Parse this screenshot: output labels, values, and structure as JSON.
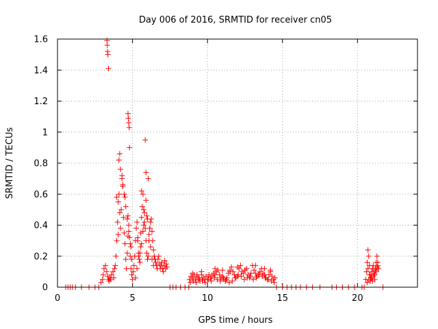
{
  "chart_data": {
    "type": "scatter",
    "title": "Day 006 of 2016, SRMTID for receiver cn05",
    "xlabel": "GPS time / hours",
    "ylabel": "SRMTID / TECUs",
    "xlim": [
      0,
      24
    ],
    "ylim": [
      0,
      1.6
    ],
    "xticks": [
      0,
      5,
      10,
      15,
      20
    ],
    "xtick_labels": [
      "0",
      "5",
      "10",
      "15",
      "20"
    ],
    "yticks": [
      0,
      0.2,
      0.4,
      0.6,
      0.8,
      1.0,
      1.2,
      1.4,
      1.6
    ],
    "ytick_labels": [
      "0",
      "0.2",
      "0.4",
      "0.6",
      "0.8",
      "1",
      "1.2",
      "1.4",
      "1.6"
    ],
    "grid": true,
    "marker": "+",
    "color": "#ff0000",
    "series": [
      {
        "name": "SRMTID",
        "x": [
          0.55,
          0.7,
          0.85,
          1.0,
          1.2,
          1.6,
          2.1,
          2.5,
          2.75,
          2.9,
          3.0,
          3.05,
          3.1,
          3.2,
          3.28,
          3.35,
          3.4,
          3.45,
          3.5,
          3.55,
          3.6,
          3.7,
          3.75,
          3.8,
          3.85,
          3.9,
          3.95,
          4.0,
          4.05,
          4.1,
          4.15,
          4.2,
          4.25,
          4.3,
          4.35,
          4.4,
          4.45,
          4.5,
          4.55,
          4.6,
          4.65,
          4.7,
          4.75,
          4.8,
          4.85,
          4.9,
          4.95,
          5.0,
          4.1,
          4.2,
          4.35,
          4.45,
          4.55,
          4.65,
          4.75,
          4.85,
          4.95,
          4.15,
          4.3,
          4.5,
          4.7,
          4.9,
          3.3,
          3.32,
          3.34,
          3.36,
          3.4,
          4.7,
          4.72,
          4.75,
          4.78,
          4.8,
          3.95,
          4.05,
          5.05,
          5.1,
          5.15,
          5.2,
          5.25,
          5.3,
          5.35,
          5.4,
          5.45,
          5.5,
          5.55,
          5.6,
          5.65,
          5.7,
          5.75,
          5.8,
          5.85,
          5.9,
          5.95,
          6.0,
          6.05,
          6.1,
          6.15,
          6.2,
          6.25,
          6.3,
          6.35,
          6.4,
          6.45,
          6.5,
          5.2,
          5.3,
          5.4,
          5.5,
          5.6,
          5.7,
          5.8,
          5.9,
          6.0,
          6.1,
          6.2,
          6.3,
          6.4,
          5.35,
          5.55,
          5.75,
          5.95,
          6.15,
          5.85,
          5.9,
          5.6,
          6.05,
          6.55,
          6.6,
          6.65,
          6.7,
          6.75,
          6.8,
          6.85,
          6.9,
          6.95,
          7.0,
          7.05,
          7.1,
          7.15,
          7.2,
          7.25,
          7.3,
          7.5,
          7.7,
          7.9,
          8.2,
          8.5,
          8.75,
          8.8,
          8.9,
          9.0,
          9.1,
          9.2,
          9.3,
          9.4,
          9.5,
          9.6,
          9.7,
          9.8,
          9.9,
          10.0,
          10.1,
          10.2,
          10.3,
          10.4,
          10.5,
          10.6,
          10.7,
          10.8,
          10.9,
          11.0,
          11.1,
          11.2,
          11.3,
          11.4,
          11.5,
          11.6,
          11.7,
          11.8,
          11.9,
          12.0,
          12.1,
          12.2,
          12.3,
          12.4,
          12.5,
          12.6,
          12.7,
          12.8,
          12.9,
          13.0,
          13.1,
          13.2,
          13.3,
          13.4,
          13.5,
          13.6,
          13.7,
          13.8,
          13.9,
          14.0,
          14.1,
          14.2,
          14.3,
          14.4,
          14.5,
          8.85,
          9.05,
          9.25,
          9.45,
          9.65,
          9.85,
          10.05,
          10.25,
          10.45,
          10.65,
          10.85,
          11.05,
          11.25,
          11.45,
          11.65,
          11.85,
          12.05,
          12.25,
          12.45,
          12.65,
          12.85,
          13.05,
          13.25,
          13.45,
          13.65,
          13.85,
          14.05,
          14.25,
          14.45,
          9.0,
          9.3,
          9.6,
          10.5,
          11.0,
          11.5,
          12.0,
          12.5,
          13.2,
          13.8,
          14.2,
          14.6,
          15.0,
          15.3,
          15.6,
          15.9,
          16.2,
          16.6,
          17.0,
          17.5,
          18.3,
          18.6,
          19.0,
          19.4,
          19.8,
          20.3,
          20.45,
          20.55,
          20.6,
          20.65,
          20.7,
          20.75,
          20.8,
          20.85,
          20.9,
          20.95,
          21.0,
          21.05,
          21.1,
          21.15,
          21.2,
          21.25,
          21.3,
          21.35,
          21.4,
          20.65,
          20.75,
          20.85,
          20.95,
          21.05,
          21.15,
          21.25,
          21.35,
          20.7,
          20.8,
          20.9,
          21.0,
          21.1,
          21.2,
          21.3,
          21.7
        ],
        "y": [
          0,
          0,
          0,
          0,
          0,
          0,
          0,
          0,
          0,
          0.03,
          0.05,
          0.08,
          0.12,
          0.14,
          0.1,
          0.07,
          0.05,
          0.04,
          0.06,
          0.05,
          0.08,
          0.1,
          0.06,
          0.12,
          0.14,
          0.2,
          0.3,
          0.42,
          0.55,
          0.6,
          0.48,
          0.38,
          0.5,
          0.72,
          0.65,
          0.45,
          0.35,
          0.28,
          0.18,
          0.12,
          0.22,
          0.33,
          0.4,
          0.32,
          0.2,
          0.12,
          0.08,
          0.05,
          0.82,
          0.76,
          0.66,
          0.6,
          0.52,
          0.44,
          0.36,
          0.28,
          0.18,
          0.86,
          0.7,
          0.58,
          0.46,
          0.26,
          1.59,
          1.56,
          1.52,
          1.5,
          1.41,
          1.12,
          1.09,
          1.06,
          1.03,
          0.9,
          0.58,
          0.34,
          0.1,
          0.14,
          0.2,
          0.3,
          0.38,
          0.42,
          0.3,
          0.2,
          0.18,
          0.22,
          0.35,
          0.45,
          0.52,
          0.6,
          0.5,
          0.42,
          0.38,
          0.3,
          0.22,
          0.18,
          0.2,
          0.3,
          0.38,
          0.42,
          0.44,
          0.36,
          0.3,
          0.24,
          0.2,
          0.18,
          0.06,
          0.12,
          0.22,
          0.16,
          0.28,
          0.36,
          0.48,
          0.56,
          0.44,
          0.34,
          0.26,
          0.18,
          0.14,
          0.32,
          0.26,
          0.4,
          0.46,
          0.38,
          0.95,
          0.74,
          0.62,
          0.7,
          0.16,
          0.14,
          0.12,
          0.18,
          0.2,
          0.15,
          0.12,
          0.14,
          0.16,
          0.12,
          0.1,
          0.14,
          0.17,
          0.12,
          0.15,
          0.13,
          0,
          0,
          0,
          0,
          0,
          0,
          0.05,
          0.07,
          0.06,
          0.08,
          0.05,
          0.07,
          0.06,
          0.04,
          0.08,
          0.06,
          0.05,
          0.07,
          0.05,
          0.08,
          0.06,
          0.07,
          0.09,
          0.08,
          0.1,
          0.11,
          0.08,
          0.06,
          0.07,
          0.05,
          0.04,
          0.06,
          0.09,
          0.11,
          0.13,
          0.1,
          0.08,
          0.06,
          0.07,
          0.12,
          0.14,
          0.1,
          0.09,
          0.11,
          0.12,
          0.08,
          0.06,
          0.09,
          0.14,
          0.11,
          0.09,
          0.07,
          0.08,
          0.1,
          0.12,
          0.09,
          0.08,
          0.06,
          0.05,
          0.08,
          0.1,
          0.07,
          0.05,
          0.06,
          0.03,
          0.04,
          0.03,
          0.05,
          0.04,
          0.03,
          0.05,
          0.04,
          0.06,
          0.05,
          0.04,
          0.06,
          0.05,
          0.03,
          0.04,
          0.06,
          0.08,
          0.07,
          0.05,
          0.06,
          0.07,
          0.05,
          0.06,
          0.08,
          0.07,
          0.06,
          0.05,
          0.04,
          0.03,
          0.09,
          0.08,
          0.1,
          0.12,
          0.11,
          0.1,
          0.13,
          0.11,
          0.14,
          0.12,
          0.11,
          0,
          0,
          0,
          0,
          0,
          0,
          0,
          0,
          0,
          0,
          0,
          0,
          0,
          0,
          0,
          0,
          0.05,
          0.1,
          0.16,
          0.24,
          0.2,
          0.14,
          0.08,
          0.06,
          0.1,
          0.12,
          0.14,
          0.1,
          0.08,
          0.12,
          0.16,
          0.2,
          0.14,
          0.12,
          0.03,
          0.05,
          0.04,
          0.06,
          0.07,
          0.05,
          0.1,
          0.16,
          0.12,
          0.08,
          0.06,
          0.04,
          0.09,
          0.11,
          0.13,
          0
        ]
      }
    ]
  }
}
